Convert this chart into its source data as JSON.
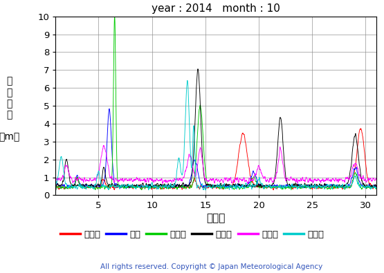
{
  "title": "year : 2014   month : 10",
  "xlabel": "（日）",
  "ylim": [
    0,
    10
  ],
  "xlim": [
    1,
    31
  ],
  "xticks": [
    5,
    10,
    15,
    20,
    25,
    30
  ],
  "yticks": [
    0,
    1,
    2,
    3,
    4,
    5,
    6,
    7,
    8,
    9,
    10
  ],
  "copyright": "All rights reserved. Copyright © Japan Meteorological Agency",
  "series": [
    {
      "label": "上ノ国",
      "color": "#ff0000"
    },
    {
      "label": "唐桑",
      "color": "#0000ff"
    },
    {
      "label": "石廀崎",
      "color": "#00cc00"
    },
    {
      "label": "経ヶ岸",
      "color": "#000000"
    },
    {
      "label": "生月島",
      "color": "#ff00ff"
    },
    {
      "label": "屋久島",
      "color": "#00cccc"
    }
  ],
  "ylabel_line1": "有",
  "ylabel_line2": "義",
  "ylabel_line3": "波",
  "ylabel_line4": "高",
  "ylabel_line5": "（m）"
}
